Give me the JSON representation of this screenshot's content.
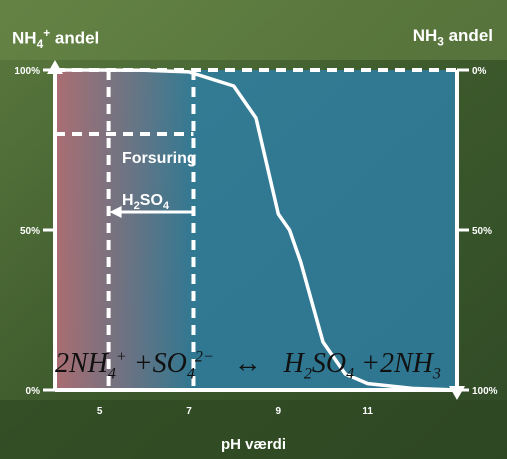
{
  "colors": {
    "acid": "#c96a6a",
    "alkaline": "#2e7fa8",
    "lines": "#ffffff"
  },
  "labels": {
    "left_axis": {
      "main": "NH",
      "sub": "4",
      "sup": "+",
      "tail": " andel"
    },
    "right_axis": {
      "main": "NH",
      "sub": "3",
      "tail": " andel"
    },
    "xlabel": "pH værdi",
    "arrow_label": "Forsuring",
    "acid": {
      "main": "H",
      "sub1": "2",
      "mid": "SO",
      "sub2": "4"
    }
  },
  "equation": {
    "left_1": "2NH",
    "left_1_sub": "4",
    "left_1_sup": "+",
    "plus1": " +SO",
    "left_2_sub": "4",
    "left_2_sup": "2−",
    "arrow": "↔",
    "right_1": "H",
    "right_1_sub": "2",
    "right_2": "SO",
    "right_2_sub": "4",
    "plus2": " +2NH",
    "right_3_sub": "3"
  },
  "chart_data": {
    "type": "line",
    "xlabel": "pH værdi",
    "ylabel_left": "NH4+ andel",
    "ylabel_right": "NH3 andel",
    "xlim": [
      4,
      13
    ],
    "ylim": [
      0,
      100
    ],
    "x_ticks": [
      5,
      7,
      9,
      11
    ],
    "y_ticks_left": [
      "0%",
      "50%",
      "100%"
    ],
    "y_ticks_right": [
      "100%",
      "50%",
      "0%"
    ],
    "series": [
      {
        "values": [
          [
            4,
            100
          ],
          [
            5,
            100
          ],
          [
            6,
            99.9
          ],
          [
            7,
            99.4
          ],
          [
            8,
            95
          ],
          [
            8.5,
            85
          ],
          [
            9,
            55
          ],
          [
            9.25,
            50
          ],
          [
            9.5,
            40
          ],
          [
            10,
            15
          ],
          [
            10.5,
            5
          ],
          [
            11,
            2
          ],
          [
            12,
            0.5
          ],
          [
            13,
            0
          ]
        ]
      }
    ],
    "markers": [
      {
        "type": "vline",
        "x": 5.2,
        "style": "dashed"
      },
      {
        "type": "vline",
        "x": 7.1,
        "style": "dashed"
      },
      {
        "type": "hline",
        "y": 100,
        "style": "dashed"
      },
      {
        "type": "hline",
        "y": 80,
        "x_range": [
          4,
          7.1
        ],
        "style": "dashed"
      }
    ],
    "annotation": {
      "text": "Forsuring",
      "direction": "left",
      "from_x": 7.1,
      "to_x": 5.2,
      "y": 65
    }
  }
}
